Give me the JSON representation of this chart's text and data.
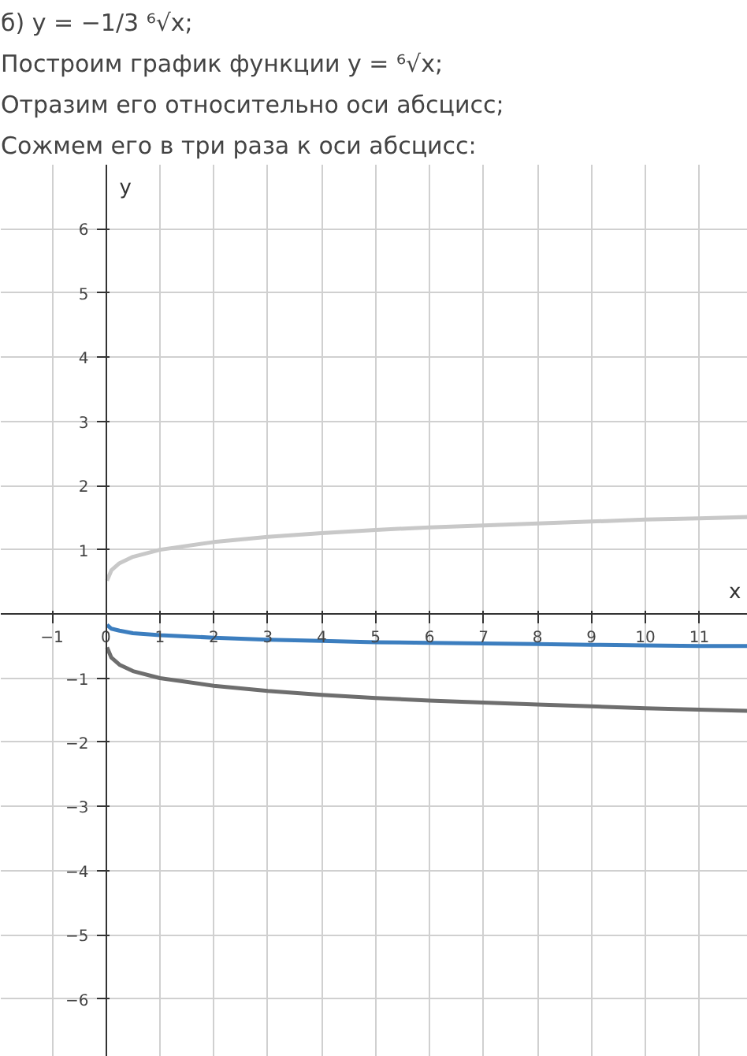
{
  "chart_data": {
    "type": "line",
    "title": "б) y = −1/3 ⁶√x;",
    "subtitle": "Построим график функции y = ⁶√x;",
    "annotations": [
      "Отразим его относительно оси абсцисс;",
      "Сожмем его в три раза к оси абсцисс:"
    ],
    "xlabel": "x",
    "ylabel": "y",
    "x": [
      0.02,
      0.1,
      0.25,
      0.5,
      1,
      2,
      3,
      4,
      5,
      6,
      7,
      8,
      9,
      10,
      11,
      11.9
    ],
    "series": [
      {
        "color": "#c8c8c8",
        "values": [
          0.52,
          0.68,
          0.79,
          0.89,
          1,
          1.12,
          1.2,
          1.26,
          1.31,
          1.35,
          1.38,
          1.41,
          1.44,
          1.47,
          1.49,
          1.51
        ]
      },
      {
        "color": "#6e6e6e",
        "values": [
          -0.52,
          -0.68,
          -0.79,
          -0.89,
          -1,
          -1.12,
          -1.2,
          -1.26,
          -1.31,
          -1.35,
          -1.38,
          -1.41,
          -1.44,
          -1.47,
          -1.49,
          -1.51
        ]
      },
      {
        "color": "#3c7ebf",
        "values": [
          -0.17,
          -0.23,
          -0.26,
          -0.3,
          -0.33,
          -0.37,
          -0.4,
          -0.42,
          -0.44,
          -0.45,
          -0.46,
          -0.47,
          -0.48,
          -0.49,
          -0.5,
          -0.5
        ]
      }
    ],
    "xlim": [
      -1.95,
      11.9
    ],
    "ylim": [
      -6.9,
      7.0
    ],
    "xticks": [
      -1,
      0,
      1,
      2,
      3,
      4,
      5,
      6,
      7,
      8,
      9,
      10,
      11
    ],
    "yticks": [
      -6,
      -5,
      -4,
      -3,
      -2,
      -1,
      1,
      2,
      3,
      4,
      5,
      6
    ],
    "grid": true,
    "line_style": "solid"
  }
}
